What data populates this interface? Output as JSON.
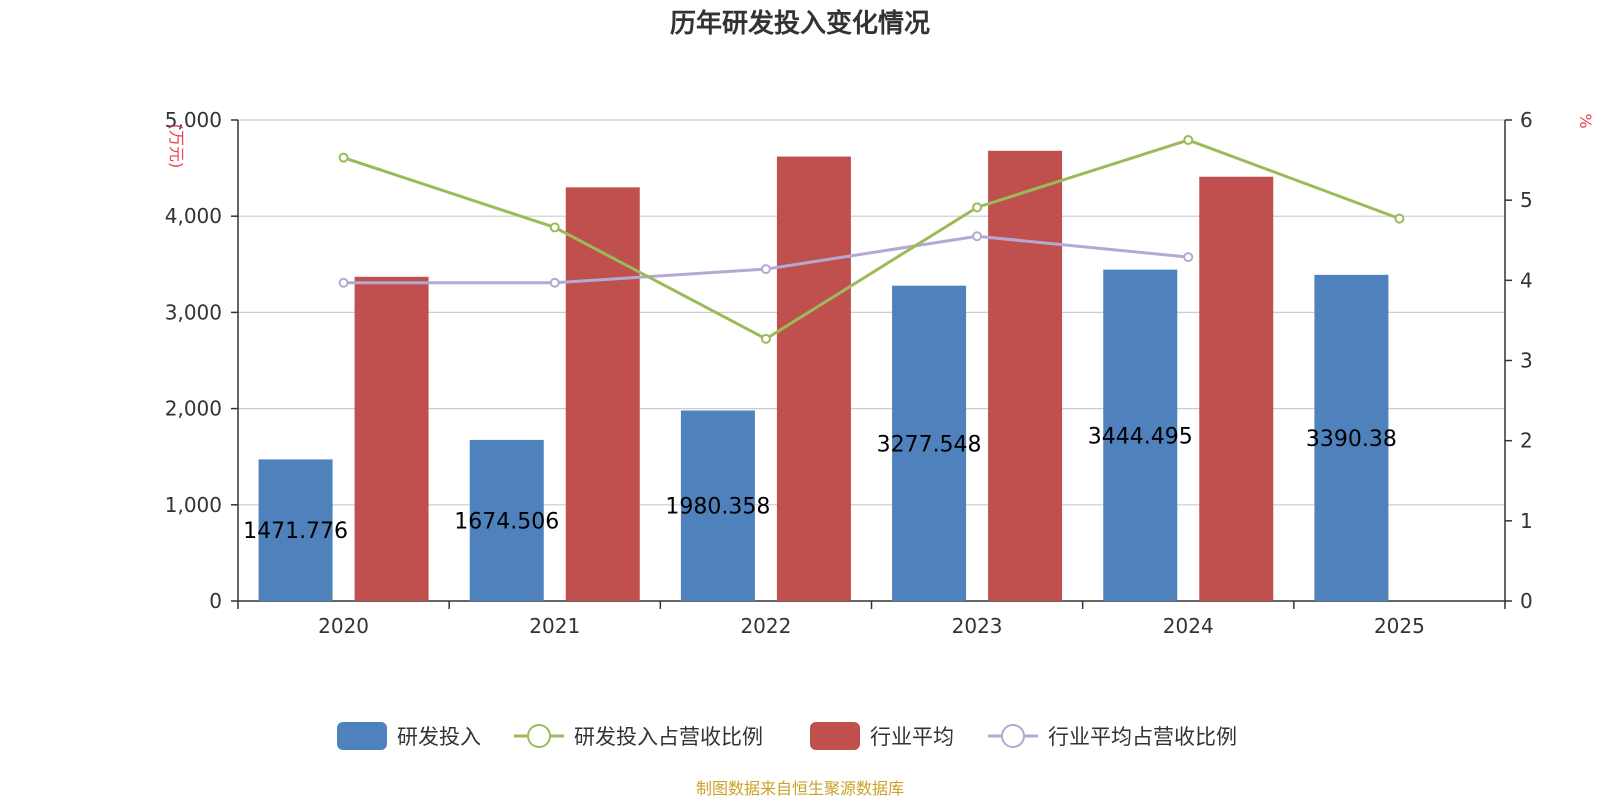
{
  "chart_data": {
    "type": "bar",
    "title": "历年研发投入变化情况",
    "categories": [
      "2020",
      "2021",
      "2022",
      "2023",
      "2024",
      "2025"
    ],
    "y_left": {
      "unit_label": "(万元)",
      "ylim": [
        0,
        5000
      ],
      "ticks": [
        0,
        1000,
        2000,
        3000,
        4000,
        5000
      ],
      "tick_labels": [
        "0",
        "1,000",
        "2,000",
        "3,000",
        "4,000",
        "5,000"
      ]
    },
    "y_right": {
      "unit_label": "%",
      "ylim": [
        0,
        6
      ],
      "ticks": [
        0,
        1,
        2,
        3,
        4,
        5,
        6
      ],
      "tick_labels": [
        "0",
        "1",
        "2",
        "3",
        "4",
        "5",
        "6"
      ]
    },
    "series": [
      {
        "name": "研发投入",
        "type": "bar",
        "axis": "left",
        "color": "#4F81BD",
        "values": [
          1471.776,
          1674.506,
          1980.358,
          3277.548,
          3444.495,
          3390.38
        ],
        "labels": [
          "1471.776",
          "1674.506",
          "1980.358",
          "3277.548",
          "3444.495",
          "3390.38"
        ]
      },
      {
        "name": "研发投入占营收比例",
        "type": "line",
        "axis": "right",
        "color": "#9BBB59",
        "values": [
          5.53,
          4.66,
          3.27,
          4.91,
          5.75,
          4.77
        ]
      },
      {
        "name": "行业平均",
        "type": "bar",
        "axis": "left",
        "color": "#C0504D",
        "values": [
          3370,
          4300,
          4620,
          4680,
          4410,
          null
        ]
      },
      {
        "name": "行业平均占营收比例",
        "type": "line",
        "axis": "right",
        "color": "#B3A9D3",
        "values": [
          3.97,
          3.97,
          4.14,
          4.55,
          4.29,
          null
        ]
      }
    ],
    "legend_position": "bottom",
    "grid": true
  },
  "source_note": "制图数据来自恒生聚源数据库",
  "colors": {
    "unit_label": "#E8434B",
    "source_note": "#C9A227",
    "axis": "#333333",
    "grid": "#CCCCCC"
  }
}
